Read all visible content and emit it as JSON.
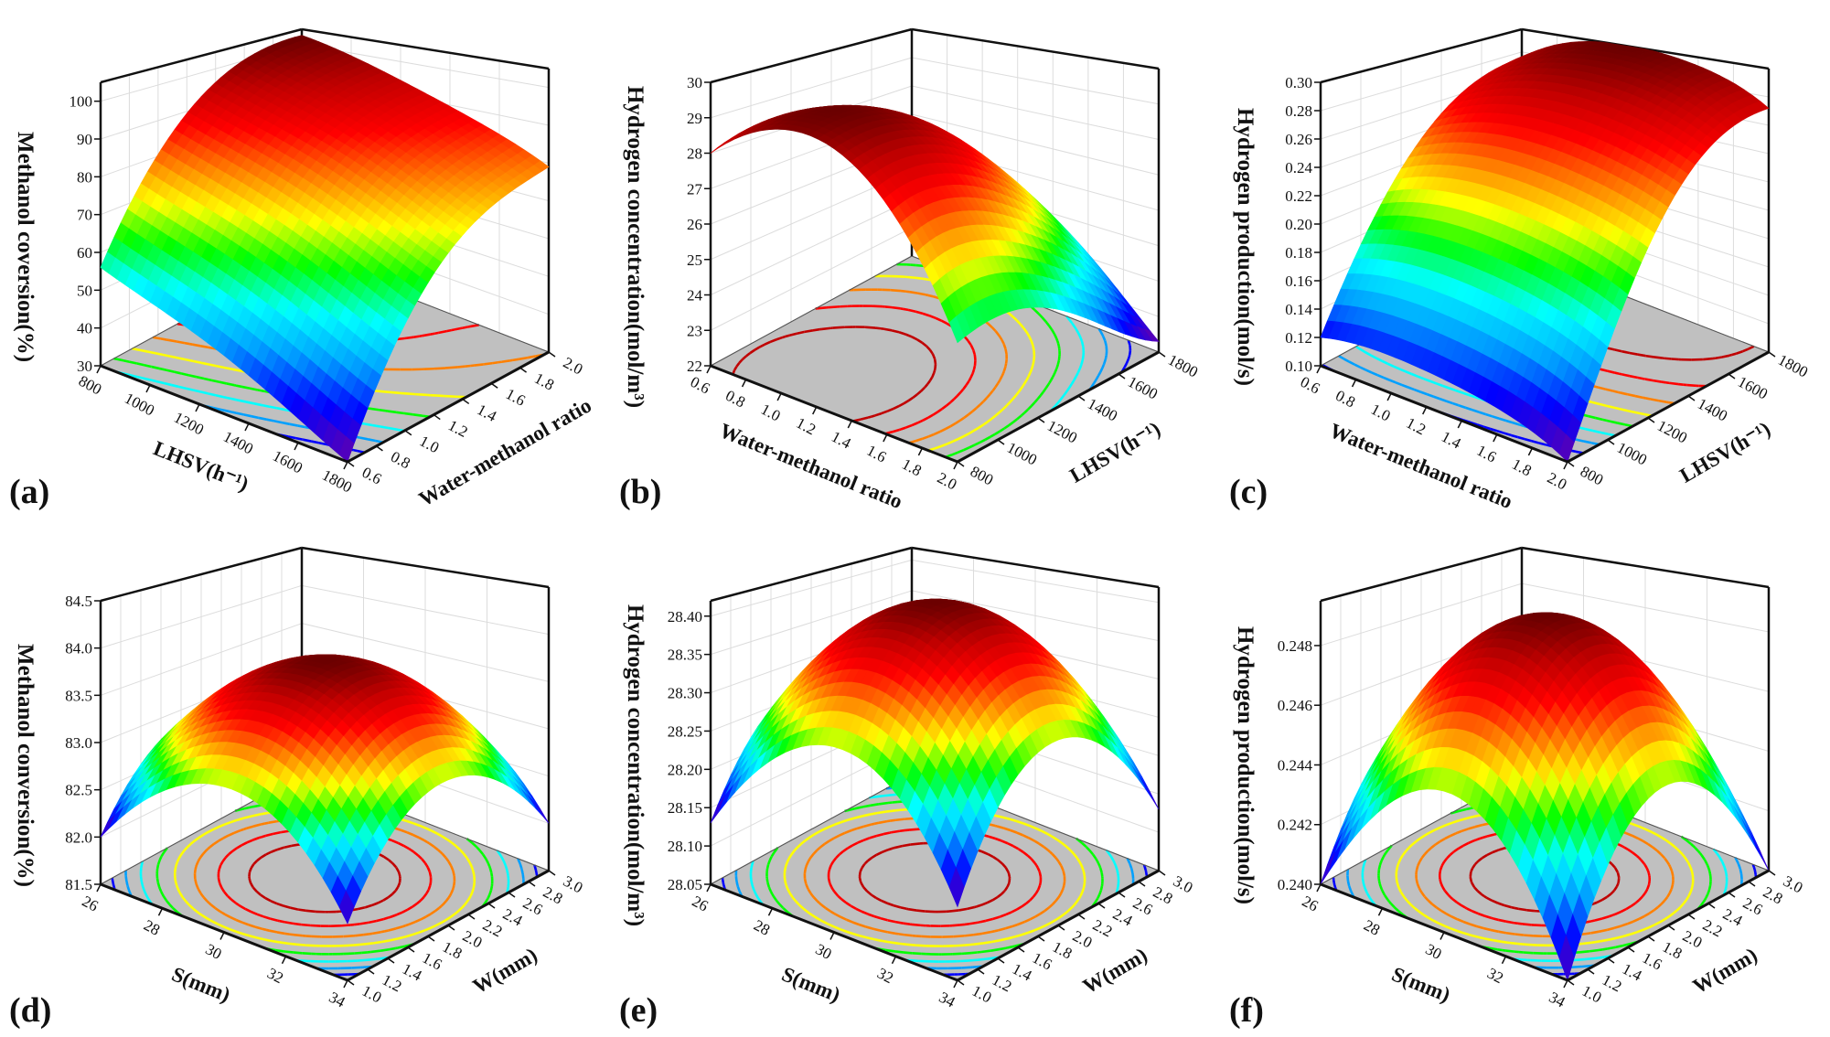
{
  "colormap": [
    "#6a00a8",
    "#0000ff",
    "#00a0ff",
    "#00ffff",
    "#00ff00",
    "#ffff00",
    "#ff8000",
    "#ff0000",
    "#c00000",
    "#6b0000"
  ],
  "floor_color": "#c0c0c0",
  "chart_data": [
    {
      "type": "surface",
      "panel_label": "(a)",
      "left_axis": {
        "label": "LHSV(h⁻¹)",
        "range": [
          800,
          1800
        ],
        "ticks": [
          "800",
          "1000",
          "1200",
          "1400",
          "1600",
          "1800"
        ]
      },
      "right_axis": {
        "label": "Water-methanol ratio",
        "range": [
          0.6,
          2.0
        ],
        "ticks": [
          "0.6",
          "0.8",
          "1.0",
          "1.2",
          "1.4",
          "1.6",
          "1.8",
          "2.0"
        ]
      },
      "z_axis": {
        "label": "Methanol coversion(%)",
        "range": [
          30,
          105
        ],
        "ticks": [
          "30",
          "40",
          "50",
          "60",
          "70",
          "80",
          "90",
          "100"
        ]
      },
      "z_grid": [
        [
          56,
          78,
          93,
          101,
          103
        ],
        [
          50,
          72,
          87,
          95,
          98
        ],
        [
          44,
          66,
          81,
          89,
          92
        ],
        [
          37,
          59,
          74,
          82,
          86
        ],
        [
          30,
          52,
          67,
          75,
          79
        ]
      ]
    },
    {
      "type": "surface",
      "panel_label": "(b)",
      "left_axis": {
        "label": "Water-methanol ratio",
        "range": [
          0.6,
          2.0
        ],
        "ticks": [
          "0.6",
          "0.8",
          "1.0",
          "1.2",
          "1.4",
          "1.6",
          "1.8",
          "2.0"
        ]
      },
      "right_axis": {
        "label": "LHSV(h⁻¹)",
        "range": [
          800,
          1800
        ],
        "ticks": [
          "800",
          "1000",
          "1200",
          "1400",
          "1600",
          "1800"
        ]
      },
      "z_axis": {
        "label": "Hydrogen concentration(mol/m³)",
        "range": [
          22,
          30
        ],
        "ticks": [
          "22",
          "23",
          "24",
          "25",
          "26",
          "27",
          "28",
          "29",
          "30"
        ]
      },
      "z_grid": [
        [
          28.0,
          28.3,
          27.8,
          26.6,
          24.8
        ],
        [
          29.0,
          29.2,
          28.7,
          27.5,
          25.6
        ],
        [
          28.8,
          29.0,
          28.5,
          27.2,
          25.2
        ],
        [
          27.4,
          27.6,
          27.0,
          25.8,
          23.9
        ],
        [
          24.8,
          25.0,
          24.5,
          23.4,
          22.3
        ]
      ]
    },
    {
      "type": "surface",
      "panel_label": "(c)",
      "left_axis": {
        "label": "Water-methanol ratio",
        "range": [
          0.6,
          2.0
        ],
        "ticks": [
          "0.6",
          "0.8",
          "1.0",
          "1.2",
          "1.4",
          "1.6",
          "1.8",
          "2.0"
        ]
      },
      "right_axis": {
        "label": "LHSV(h⁻¹)",
        "range": [
          800,
          1800
        ],
        "ticks": [
          "800",
          "1000",
          "1200",
          "1400",
          "1600",
          "1800"
        ]
      },
      "z_axis": {
        "label": "Hydrogen production(mol/s)",
        "range": [
          0.1,
          0.3
        ],
        "ticks": [
          "0.10",
          "0.12",
          "0.14",
          "0.16",
          "0.18",
          "0.20",
          "0.22",
          "0.24",
          "0.26",
          "0.28",
          "0.30"
        ]
      },
      "z_grid": [
        [
          0.12,
          0.185,
          0.235,
          0.265,
          0.275
        ],
        [
          0.125,
          0.195,
          0.25,
          0.285,
          0.298
        ],
        [
          0.122,
          0.193,
          0.25,
          0.288,
          0.3
        ],
        [
          0.115,
          0.185,
          0.242,
          0.28,
          0.292
        ],
        [
          0.1,
          0.17,
          0.228,
          0.262,
          0.272
        ]
      ]
    },
    {
      "type": "surface",
      "panel_label": "(d)",
      "left_axis": {
        "label": "S(mm)",
        "range": [
          26,
          34
        ],
        "ticks": [
          "26",
          "28",
          "30",
          "32",
          "34"
        ]
      },
      "right_axis": {
        "label": "W(mm)",
        "range": [
          1.0,
          3.0
        ],
        "ticks": [
          "1.0",
          "1.2",
          "1.4",
          "1.6",
          "1.8",
          "2.0",
          "2.2",
          "2.4",
          "2.6",
          "2.8",
          "3.0"
        ]
      },
      "z_axis": {
        "label": "Methanol conversion(%)",
        "range": [
          81.5,
          84.5
        ],
        "ticks": [
          "81.5",
          "82.0",
          "82.5",
          "83.0",
          "83.5",
          "84.0",
          "84.5"
        ]
      },
      "z_grid": [
        [
          82.0,
          82.68,
          82.9,
          82.68,
          82.0
        ],
        [
          82.68,
          83.35,
          83.58,
          83.35,
          82.68
        ],
        [
          82.9,
          83.58,
          83.8,
          83.58,
          82.9
        ],
        [
          82.68,
          83.35,
          83.58,
          83.35,
          82.68
        ],
        [
          82.0,
          82.68,
          82.9,
          82.68,
          82.0
        ]
      ]
    },
    {
      "type": "surface",
      "panel_label": "(e)",
      "left_axis": {
        "label": "S(mm)",
        "range": [
          26,
          34
        ],
        "ticks": [
          "26",
          "28",
          "30",
          "32",
          "34"
        ]
      },
      "right_axis": {
        "label": "W(mm)",
        "range": [
          1.0,
          3.0
        ],
        "ticks": [
          "1.0",
          "1.2",
          "1.4",
          "1.6",
          "1.8",
          "2.0",
          "2.2",
          "2.4",
          "2.6",
          "2.8",
          "3.0"
        ]
      },
      "z_axis": {
        "label": "Hydrogen concentration(mol/m³)",
        "range": [
          28.05,
          28.42
        ],
        "ticks": [
          "28.05",
          "28.10",
          "28.15",
          "28.20",
          "28.25",
          "28.30",
          "28.35",
          "28.40"
        ]
      },
      "z_grid": [
        [
          28.13,
          28.235,
          28.27,
          28.235,
          28.13
        ],
        [
          28.235,
          28.34,
          28.375,
          28.34,
          28.235
        ],
        [
          28.27,
          28.375,
          28.41,
          28.375,
          28.27
        ],
        [
          28.235,
          28.34,
          28.375,
          28.34,
          28.235
        ],
        [
          28.13,
          28.235,
          28.27,
          28.235,
          28.13
        ]
      ]
    },
    {
      "type": "surface",
      "panel_label": "(f)",
      "left_axis": {
        "label": "S(mm)",
        "range": [
          26,
          34
        ],
        "ticks": [
          "26",
          "28",
          "30",
          "32",
          "34"
        ]
      },
      "right_axis": {
        "label": "W(mm)",
        "range": [
          1.0,
          3.0
        ],
        "ticks": [
          "1.0",
          "1.2",
          "1.4",
          "1.6",
          "1.8",
          "2.0",
          "2.2",
          "2.4",
          "2.6",
          "2.8",
          "3.0"
        ]
      },
      "z_axis": {
        "label": "Hydrogen production(mol/s)",
        "range": [
          0.24,
          0.2495
        ],
        "ticks": [
          "0.240",
          "0.242",
          "0.244",
          "0.246",
          "0.248"
        ]
      },
      "z_grid": [
        [
          0.24,
          0.24318,
          0.2443,
          0.24318,
          0.24
        ],
        [
          0.24318,
          0.24655,
          0.24768,
          0.24655,
          0.24318
        ],
        [
          0.2443,
          0.24768,
          0.2488,
          0.24768,
          0.2443
        ],
        [
          0.24318,
          0.24655,
          0.24768,
          0.24655,
          0.24318
        ],
        [
          0.24,
          0.24318,
          0.2443,
          0.24318,
          0.24
        ]
      ]
    }
  ]
}
